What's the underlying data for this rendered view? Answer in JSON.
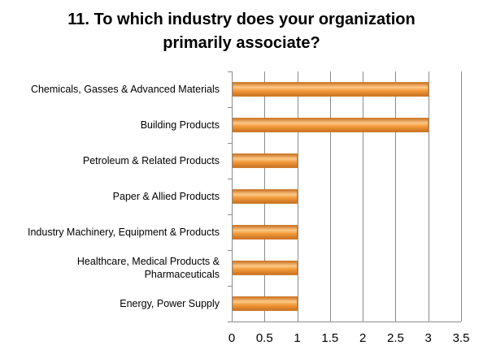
{
  "chart_data": {
    "type": "bar",
    "orientation": "horizontal",
    "title_lines": [
      "11. To which industry does your organization",
      "primarily associate?"
    ],
    "categories": [
      [
        "Chemicals, Gasses & Advanced Materials"
      ],
      [
        "Building Products"
      ],
      [
        "Petroleum & Related Products"
      ],
      [
        "Paper & Allied Products"
      ],
      [
        "Industry Machinery, Equipment & Products"
      ],
      [
        "Healthcare, Medical Products &",
        "Pharmaceuticals"
      ],
      [
        "Energy, Power Supply"
      ]
    ],
    "values": [
      3,
      3,
      1,
      1,
      1,
      1,
      1
    ],
    "xlim": [
      0,
      3.5
    ],
    "xticks": [
      "0",
      "0.5",
      "1",
      "1.5",
      "2",
      "2.5",
      "3",
      "3.5"
    ],
    "grid": "vertical",
    "legend": "none",
    "bar_color": "#F29A3A",
    "bar_color_dark": "#C9701F",
    "bar_color_light": "#FCC887"
  }
}
